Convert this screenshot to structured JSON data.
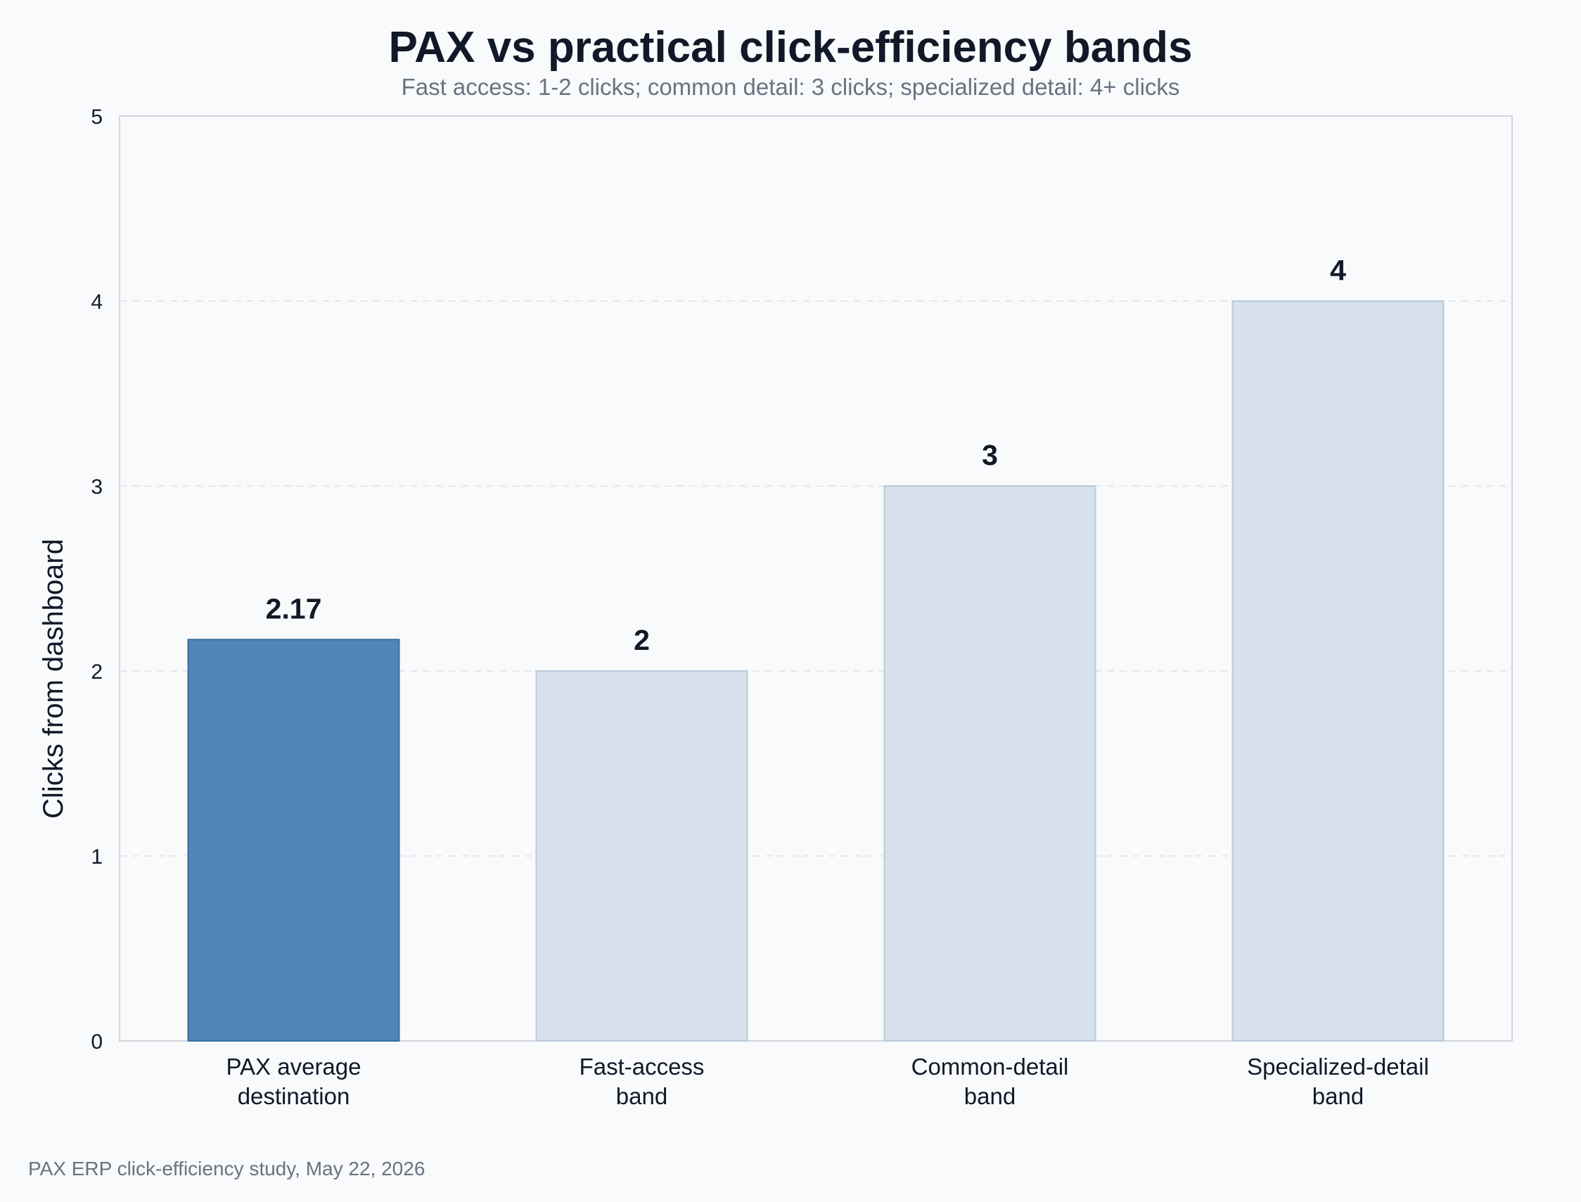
{
  "header": {
    "title": "PAX vs practical click-efficiency bands",
    "subtitle": "Fast access: 1-2 clicks; common detail: 3 clicks; specialized detail: 4+ clicks"
  },
  "footer": {
    "text": "PAX ERP click-efficiency study, May 22, 2026"
  },
  "colors": {
    "background": "#f8fafc",
    "highlight_bar": "#4f86b7",
    "highlight_border": "#3b6f9d",
    "band_bar": "#d6e1ec",
    "band_border": "#b8c9d8",
    "grid": "#e5e7eb",
    "axis": "#d1d5db"
  },
  "chart_data": {
    "type": "bar",
    "title": "PAX vs practical click-efficiency bands",
    "subtitle": "Fast access: 1-2 clicks; common detail: 3 clicks; specialized detail: 4+ clicks",
    "xlabel": "",
    "ylabel": "Clicks from dashboard",
    "ylim": [
      0,
      5
    ],
    "yticks": [
      0,
      1,
      2,
      3,
      4,
      5
    ],
    "grid": true,
    "categories": [
      [
        "PAX average",
        "destination"
      ],
      [
        "Fast-access",
        "band"
      ],
      [
        "Common-detail",
        "band"
      ],
      [
        "Specialized-detail",
        "band"
      ]
    ],
    "values": [
      2.17,
      2,
      3,
      4
    ],
    "value_labels": [
      "2.17",
      "2",
      "3",
      "4"
    ],
    "highlight_index": 0
  }
}
